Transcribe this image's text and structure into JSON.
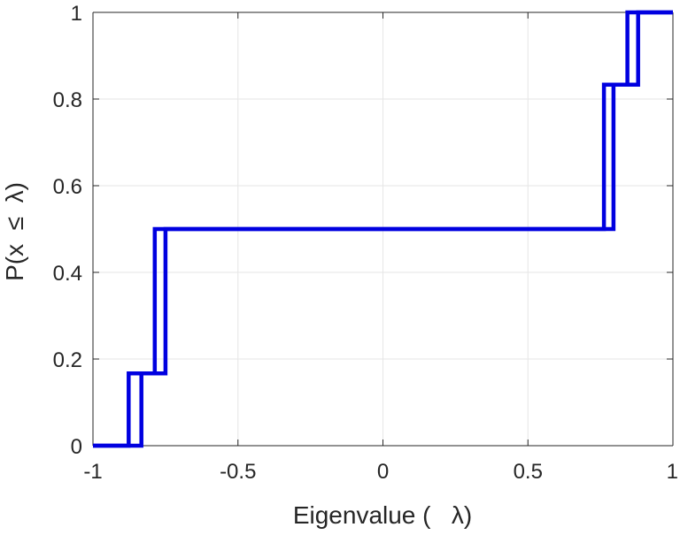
{
  "chart_data": {
    "type": "line",
    "subtype": "empirical-cdf-step",
    "title": "",
    "xlabel": "Eigenvalue (   λ)",
    "ylabel": "P(x  ≤  λ)",
    "xlim": [
      -1,
      1
    ],
    "ylim": [
      0,
      1
    ],
    "xticks": [
      -1,
      -0.5,
      0,
      0.5,
      1
    ],
    "yticks": [
      0,
      0.2,
      0.4,
      0.6,
      0.8,
      1
    ],
    "xtick_labels": [
      "-1",
      "-0.5",
      "0",
      "0.5",
      "1"
    ],
    "ytick_labels": [
      "0",
      "0.2",
      "0.4",
      "0.6",
      "0.8",
      "1"
    ],
    "grid": true,
    "legend": "none",
    "line_color": "#0000e0",
    "series": [
      {
        "x": [
          -1,
          -0.877,
          -0.877,
          -0.787,
          -0.787,
          0.762,
          0.762,
          0.843,
          0.843,
          1
        ],
        "y": [
          0,
          0,
          0.167,
          0.167,
          0.5,
          0.5,
          0.833,
          0.833,
          1,
          1
        ]
      },
      {
        "x": [
          -1,
          -0.833,
          -0.833,
          -0.75,
          -0.75,
          0.795,
          0.795,
          0.88,
          0.88,
          1
        ],
        "y": [
          0,
          0,
          0.167,
          0.167,
          0.5,
          0.5,
          0.833,
          0.833,
          1,
          1
        ]
      }
    ]
  }
}
